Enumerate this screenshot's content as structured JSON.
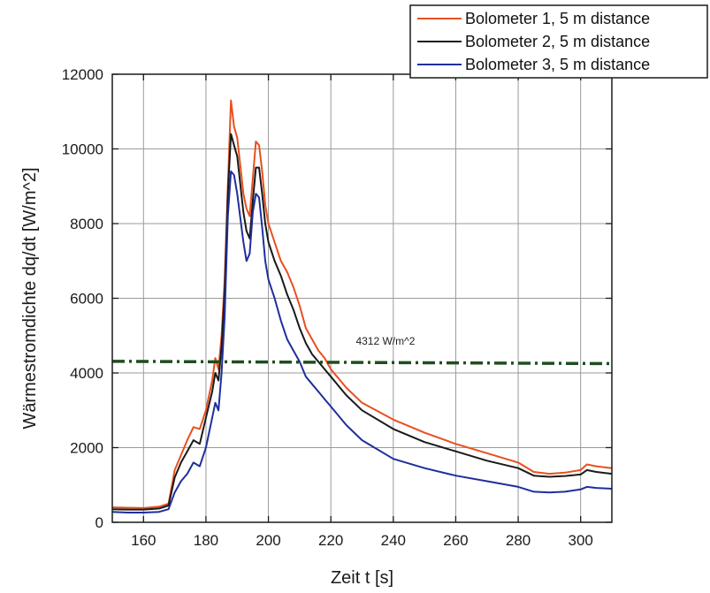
{
  "chart_data": {
    "type": "line",
    "xlabel": "Zeit t [s]",
    "ylabel": "Wärmestromdichte dq/dt [W/m^2]",
    "xlim": [
      150,
      310
    ],
    "ylim": [
      0,
      12000
    ],
    "xticks": [
      160,
      180,
      200,
      220,
      240,
      260,
      280,
      300
    ],
    "yticks": [
      0,
      2000,
      4000,
      6000,
      8000,
      10000,
      12000
    ],
    "xtick_labels": [
      "160",
      "180",
      "200",
      "220",
      "240",
      "260",
      "280",
      "300"
    ],
    "ytick_labels": [
      "0",
      "2000",
      "4000",
      "6000",
      "8000",
      "10000",
      "12000"
    ],
    "grid": true,
    "legend_position": "top-right, outside plot",
    "series": [
      {
        "name": "Bolometer 1, 5 m distance",
        "color": "#e8501e",
        "points": [
          [
            150,
            400
          ],
          [
            155,
            390
          ],
          [
            160,
            380
          ],
          [
            165,
            420
          ],
          [
            168,
            500
          ],
          [
            170,
            1400
          ],
          [
            172,
            1800
          ],
          [
            174,
            2200
          ],
          [
            176,
            2550
          ],
          [
            178,
            2500
          ],
          [
            180,
            3000
          ],
          [
            182,
            3800
          ],
          [
            183,
            4400
          ],
          [
            184,
            4100
          ],
          [
            185,
            5000
          ],
          [
            186,
            6500
          ],
          [
            187,
            9000
          ],
          [
            188,
            11300
          ],
          [
            189,
            10600
          ],
          [
            190,
            10300
          ],
          [
            192,
            8800
          ],
          [
            193,
            8400
          ],
          [
            194,
            8200
          ],
          [
            195,
            9200
          ],
          [
            196,
            10200
          ],
          [
            197,
            10100
          ],
          [
            198,
            9400
          ],
          [
            199,
            8500
          ],
          [
            200,
            8000
          ],
          [
            202,
            7500
          ],
          [
            204,
            7000
          ],
          [
            206,
            6700
          ],
          [
            208,
            6300
          ],
          [
            210,
            5800
          ],
          [
            212,
            5200
          ],
          [
            214,
            4900
          ],
          [
            216,
            4600
          ],
          [
            218,
            4400
          ],
          [
            220,
            4100
          ],
          [
            225,
            3600
          ],
          [
            230,
            3200
          ],
          [
            240,
            2750
          ],
          [
            250,
            2400
          ],
          [
            260,
            2100
          ],
          [
            270,
            1850
          ],
          [
            280,
            1600
          ],
          [
            285,
            1350
          ],
          [
            290,
            1300
          ],
          [
            295,
            1330
          ],
          [
            300,
            1400
          ],
          [
            302,
            1550
          ],
          [
            305,
            1500
          ],
          [
            310,
            1450
          ]
        ]
      },
      {
        "name": "Bolometer 2, 5 m distance",
        "color": "#1a1a1a",
        "points": [
          [
            150,
            350
          ],
          [
            155,
            340
          ],
          [
            160,
            340
          ],
          [
            165,
            370
          ],
          [
            168,
            450
          ],
          [
            170,
            1200
          ],
          [
            172,
            1600
          ],
          [
            174,
            1900
          ],
          [
            176,
            2200
          ],
          [
            178,
            2100
          ],
          [
            180,
            2800
          ],
          [
            182,
            3500
          ],
          [
            183,
            4000
          ],
          [
            184,
            3800
          ],
          [
            185,
            4700
          ],
          [
            186,
            6200
          ],
          [
            187,
            8800
          ],
          [
            188,
            10400
          ],
          [
            189,
            10100
          ],
          [
            190,
            9800
          ],
          [
            192,
            8300
          ],
          [
            193,
            7800
          ],
          [
            194,
            7600
          ],
          [
            195,
            8600
          ],
          [
            196,
            9500
          ],
          [
            197,
            9500
          ],
          [
            198,
            8800
          ],
          [
            199,
            8000
          ],
          [
            200,
            7500
          ],
          [
            202,
            7000
          ],
          [
            204,
            6600
          ],
          [
            206,
            6100
          ],
          [
            208,
            5700
          ],
          [
            210,
            5200
          ],
          [
            212,
            4800
          ],
          [
            214,
            4500
          ],
          [
            216,
            4300
          ],
          [
            218,
            4100
          ],
          [
            220,
            3900
          ],
          [
            225,
            3400
          ],
          [
            230,
            3000
          ],
          [
            240,
            2500
          ],
          [
            250,
            2150
          ],
          [
            260,
            1900
          ],
          [
            270,
            1650
          ],
          [
            280,
            1450
          ],
          [
            285,
            1250
          ],
          [
            290,
            1220
          ],
          [
            295,
            1240
          ],
          [
            300,
            1280
          ],
          [
            302,
            1400
          ],
          [
            305,
            1350
          ],
          [
            310,
            1300
          ]
        ]
      },
      {
        "name": "Bolometer 3, 5 m distance",
        "color": "#1f2f9c",
        "points": [
          [
            150,
            280
          ],
          [
            155,
            260
          ],
          [
            160,
            260
          ],
          [
            165,
            280
          ],
          [
            168,
            350
          ],
          [
            170,
            800
          ],
          [
            172,
            1100
          ],
          [
            174,
            1300
          ],
          [
            176,
            1600
          ],
          [
            178,
            1500
          ],
          [
            180,
            2000
          ],
          [
            182,
            2800
          ],
          [
            183,
            3200
          ],
          [
            184,
            3000
          ],
          [
            185,
            4000
          ],
          [
            186,
            5500
          ],
          [
            187,
            8200
          ],
          [
            188,
            9400
          ],
          [
            189,
            9300
          ],
          [
            190,
            8800
          ],
          [
            192,
            7500
          ],
          [
            193,
            7000
          ],
          [
            194,
            7200
          ],
          [
            195,
            8300
          ],
          [
            196,
            8800
          ],
          [
            197,
            8700
          ],
          [
            198,
            7900
          ],
          [
            199,
            7000
          ],
          [
            200,
            6500
          ],
          [
            202,
            6000
          ],
          [
            204,
            5400
          ],
          [
            206,
            4900
          ],
          [
            208,
            4600
          ],
          [
            210,
            4300
          ],
          [
            212,
            3900
          ],
          [
            214,
            3700
          ],
          [
            216,
            3500
          ],
          [
            218,
            3300
          ],
          [
            220,
            3100
          ],
          [
            225,
            2600
          ],
          [
            230,
            2200
          ],
          [
            240,
            1700
          ],
          [
            250,
            1450
          ],
          [
            260,
            1250
          ],
          [
            270,
            1100
          ],
          [
            280,
            950
          ],
          [
            285,
            820
          ],
          [
            290,
            800
          ],
          [
            295,
            820
          ],
          [
            300,
            880
          ],
          [
            302,
            950
          ],
          [
            305,
            920
          ],
          [
            310,
            900
          ]
        ]
      }
    ],
    "reference_line": {
      "value": 4312,
      "label": "4312 W/m^2",
      "x_range": [
        150,
        310
      ],
      "y_end": 4250,
      "color": "#1f4d1f",
      "dash": "dash-dot"
    }
  }
}
